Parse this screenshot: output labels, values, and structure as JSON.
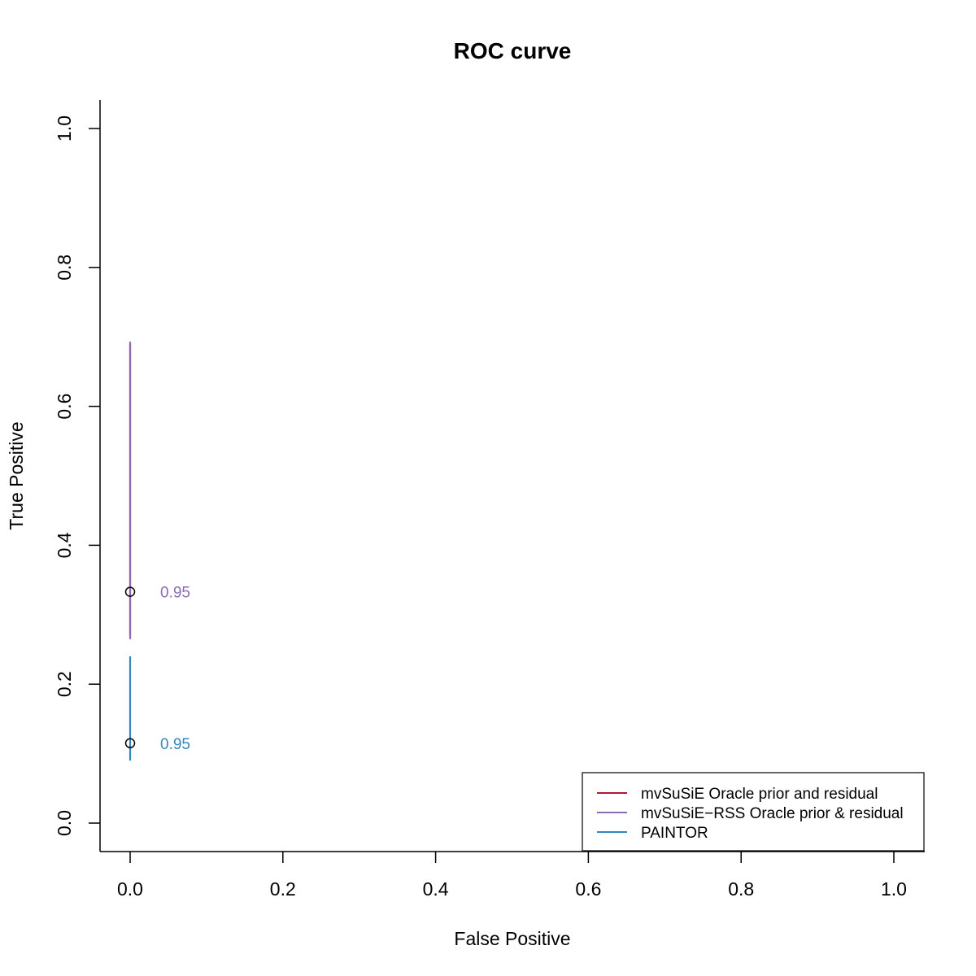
{
  "chart_data": {
    "type": "line",
    "title": "ROC curve",
    "xlabel": "False Positive",
    "ylabel": "True Positive",
    "xlim": [
      0,
      1
    ],
    "ylim": [
      0,
      1
    ],
    "x_ticks": [
      "0.0",
      "0.2",
      "0.4",
      "0.6",
      "0.8",
      "1.0"
    ],
    "y_ticks": [
      "0.0",
      "0.2",
      "0.4",
      "0.6",
      "0.8",
      "1.0"
    ],
    "grid": false,
    "legend_position": "bottom-right",
    "series": [
      {
        "name": "mvSuSiE Oracle prior and residual",
        "color": "#b2182b",
        "x": [
          0,
          0,
          0,
          0,
          0
        ],
        "y": [
          0.27,
          0.33,
          0.45,
          0.6,
          0.69
        ]
      },
      {
        "name": "mvSuSiE−RSS Oracle prior & residual",
        "color": "#8c6bb1",
        "x": [
          0,
          0,
          0,
          0,
          0
        ],
        "y": [
          0.265,
          0.333,
          0.45,
          0.6,
          0.693
        ]
      },
      {
        "name": "PAINTOR",
        "color": "#3288bd",
        "x": [
          0,
          0,
          0,
          0
        ],
        "y": [
          0.09,
          0.115,
          0.17,
          0.24
        ]
      }
    ],
    "annotations": [
      {
        "label": "0.95",
        "x": 0,
        "y": 0.333,
        "color": "#8c6bb1"
      },
      {
        "label": "0.95",
        "x": 0,
        "y": 0.115,
        "color": "#3288bd"
      }
    ]
  }
}
